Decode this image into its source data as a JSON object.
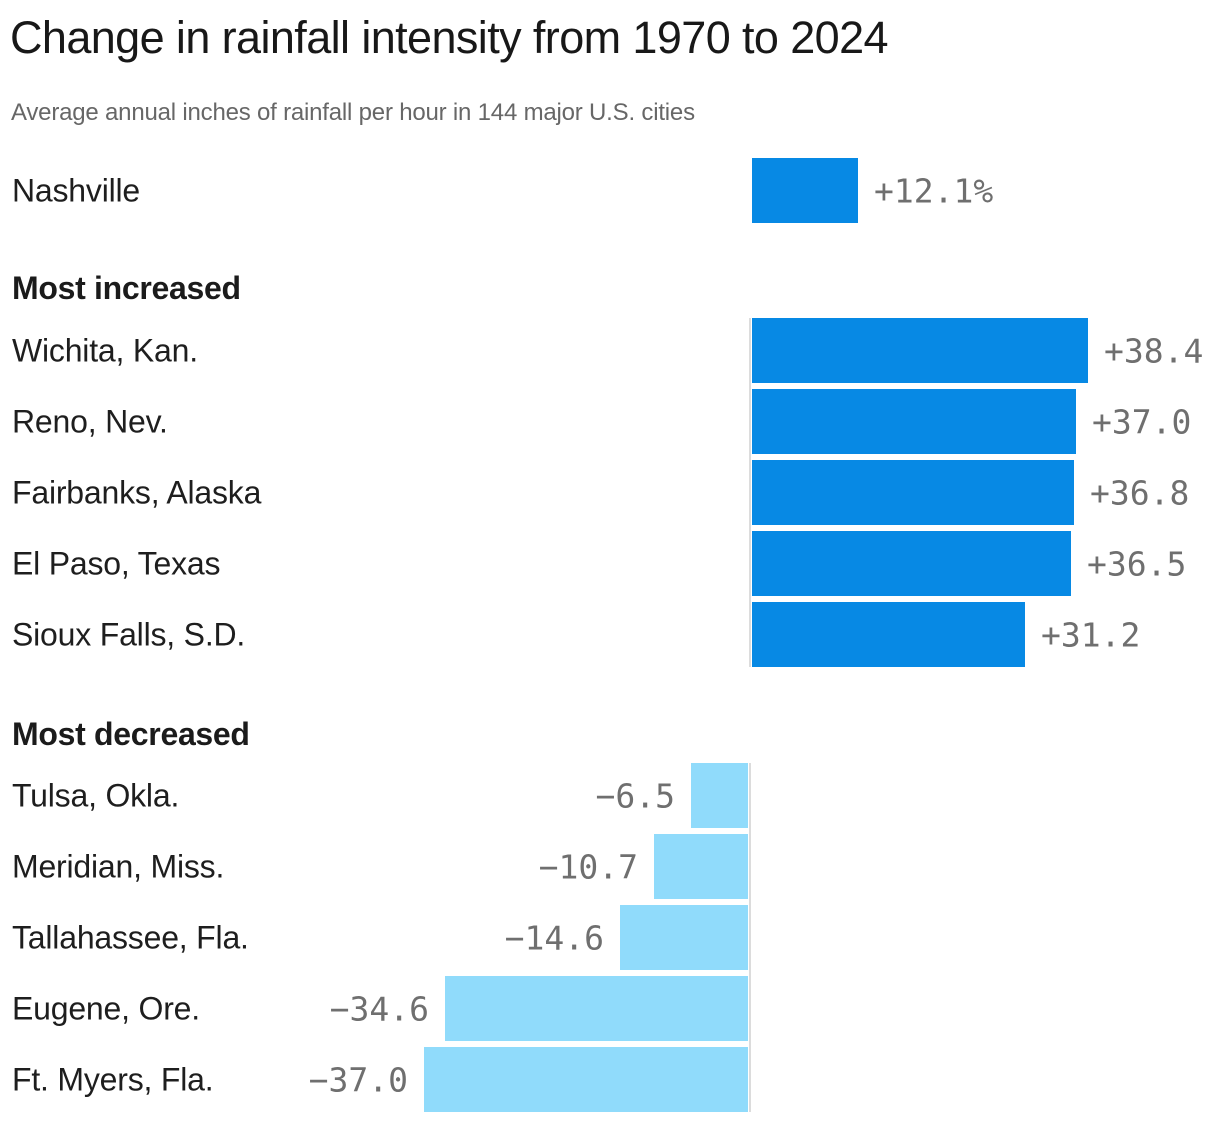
{
  "chart_data": {
    "type": "bar",
    "orientation": "horizontal",
    "title": "Change in rainfall intensity from 1970 to 2024",
    "subtitle": "Average annual inches of rainfall per hour in 144 major U.S. cities",
    "value_unit": "percent change in rainfall intensity",
    "positive_color": "#0789e4",
    "negative_color": "#90dbfb",
    "axis_line_color": "#dcdcdc",
    "value_label_color": "#6f6f6f",
    "legend": "none",
    "grid": "zero-axis only",
    "groups": [
      {
        "name": "",
        "rows": [
          {
            "label": "Nashville",
            "value": 12.1,
            "display": "+12.1%"
          }
        ]
      },
      {
        "name": "Most increased",
        "rows": [
          {
            "label": "Wichita, Kan.",
            "value": 38.4,
            "display": "+38.4"
          },
          {
            "label": "Reno, Nev.",
            "value": 37.0,
            "display": "+37.0"
          },
          {
            "label": "Fairbanks, Alaska",
            "value": 36.8,
            "display": "+36.8"
          },
          {
            "label": "El Paso, Texas",
            "value": 36.5,
            "display": "+36.5"
          },
          {
            "label": "Sioux Falls, S.D.",
            "value": 31.2,
            "display": "+31.2"
          }
        ]
      },
      {
        "name": "Most decreased",
        "rows": [
          {
            "label": "Tulsa, Okla.",
            "value": -6.5,
            "display": "−6.5"
          },
          {
            "label": "Meridian, Miss.",
            "value": -10.7,
            "display": "−10.7"
          },
          {
            "label": "Tallahassee, Fla.",
            "value": -14.6,
            "display": "−14.6"
          },
          {
            "label": "Eugene, Ore.",
            "value": -34.6,
            "display": "−34.6"
          },
          {
            "label": "Ft. Myers, Fla.",
            "value": -37.0,
            "display": "−37.0"
          }
        ]
      }
    ]
  }
}
